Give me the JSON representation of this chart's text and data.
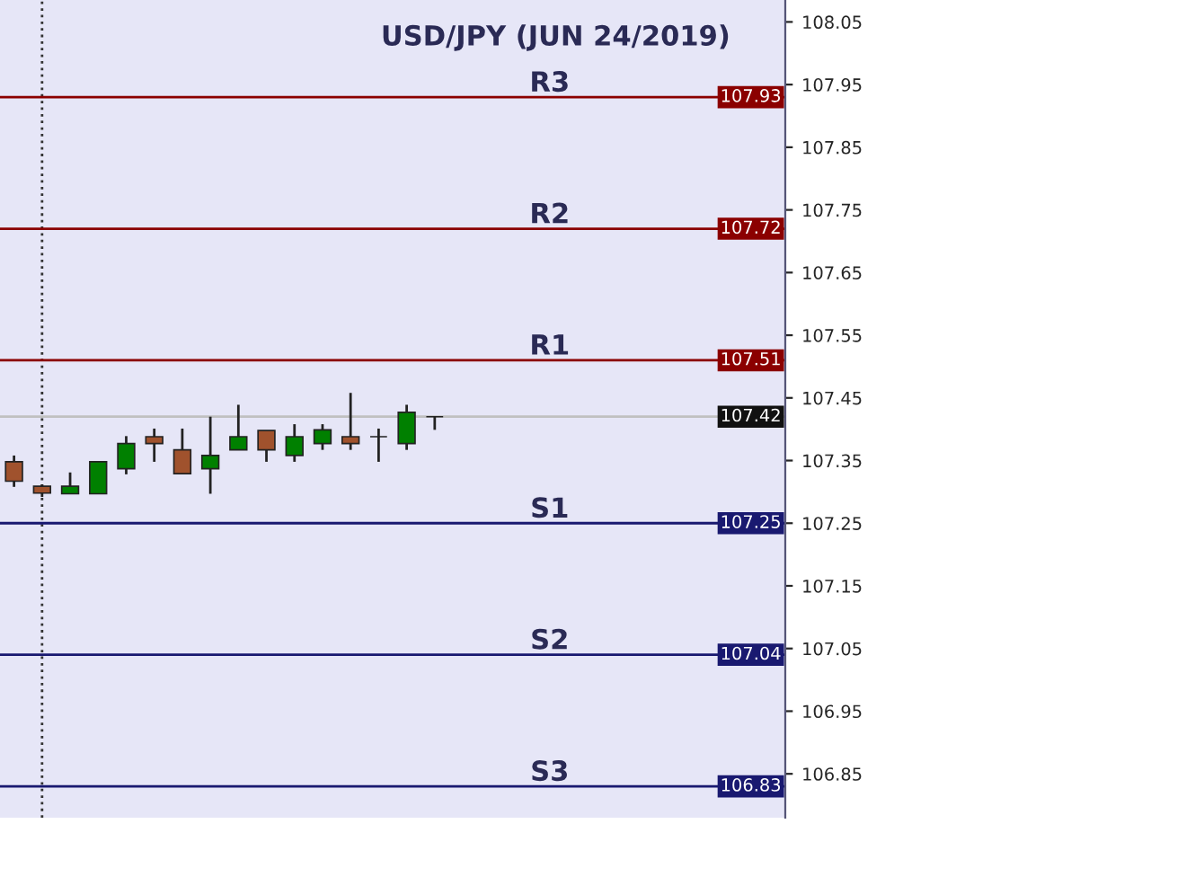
{
  "chart_data": {
    "type": "candlestick",
    "title": "USD/JPY (JUN 24/2019)",
    "categories": [
      null,
      null,
      null,
      null,
      null,
      null,
      null,
      null,
      null,
      null,
      null,
      null,
      null,
      null,
      null,
      null,
      null,
      null,
      null,
      null,
      null,
      null,
      null,
      null,
      null,
      null,
      null,
      null
    ],
    "ohlc": [
      [
        107.348,
        107.358,
        107.308,
        107.317
      ],
      [
        107.309,
        107.312,
        107.292,
        107.298
      ],
      [
        107.297,
        107.331,
        107.297,
        107.309
      ],
      [
        107.297,
        107.348,
        107.297,
        107.348
      ],
      [
        107.337,
        107.389,
        107.328,
        107.377
      ],
      [
        107.388,
        107.401,
        107.348,
        107.377
      ],
      [
        107.367,
        107.401,
        107.329,
        107.329
      ],
      [
        107.337,
        107.42,
        107.297,
        107.358
      ],
      [
        107.367,
        107.439,
        107.367,
        107.388
      ],
      [
        107.398,
        107.398,
        107.348,
        107.367
      ],
      [
        107.358,
        107.408,
        107.348,
        107.388
      ],
      [
        107.377,
        107.408,
        107.367,
        107.399
      ],
      [
        107.388,
        107.458,
        107.367,
        107.377
      ],
      [
        107.388,
        107.401,
        107.348,
        107.388
      ],
      [
        107.377,
        107.439,
        107.367,
        107.427
      ],
      [
        107.42,
        107.42,
        107.399,
        107.42
      ],
      null,
      null,
      null,
      null,
      null,
      null,
      null,
      null,
      null,
      null,
      null,
      null
    ],
    "colors": [
      "#a0522d",
      "#a0522d",
      "#008000",
      "#008000",
      "#008000",
      "#a0522d",
      "#a0522d",
      "#008000",
      "#008000",
      "#a0522d",
      "#008000",
      "#008000",
      "#a0522d",
      "#222222",
      "#008000",
      "#222222",
      null,
      null,
      null,
      null,
      null,
      null,
      null,
      null,
      null,
      null,
      null,
      null
    ],
    "ylim": [
      106.78,
      108.085
    ],
    "yticks": [
      108.05,
      107.95,
      107.85,
      107.75,
      107.65,
      107.55,
      107.45,
      107.35,
      107.25,
      107.15,
      107.05,
      106.95,
      106.85
    ],
    "ref_lines": [
      {
        "axis": "y",
        "value": 107.93,
        "label": "107.93",
        "color": "#8b0000",
        "line_style": "solid"
      },
      {
        "axis": "y",
        "value": 107.72,
        "label": "107.72",
        "color": "#8b0000",
        "line_style": "solid"
      },
      {
        "axis": "y",
        "value": 107.51,
        "label": "107.51",
        "color": "#8b0000",
        "line_style": "solid"
      },
      {
        "axis": "y",
        "value": 107.42,
        "label": "107.42",
        "color": "#c0c0c0",
        "line_style": "solid"
      },
      {
        "axis": "y",
        "value": 107.25,
        "label": "107.25",
        "color": "#191970",
        "line_style": "solid"
      },
      {
        "axis": "y",
        "value": 107.04,
        "label": "107.04",
        "color": "#191970",
        "line_style": "solid"
      },
      {
        "axis": "y",
        "value": 106.83,
        "label": "106.83",
        "color": "#191970",
        "line_style": "solid"
      }
    ],
    "annotations": [
      {
        "text": "R3",
        "y": 107.93
      },
      {
        "text": "R2",
        "y": 107.72
      },
      {
        "text": "R1",
        "y": 107.51
      },
      {
        "text": "S1",
        "y": 107.25
      },
      {
        "text": "S2",
        "y": 107.04
      },
      {
        "text": "S3",
        "y": 106.83
      }
    ],
    "grid": false
  }
}
